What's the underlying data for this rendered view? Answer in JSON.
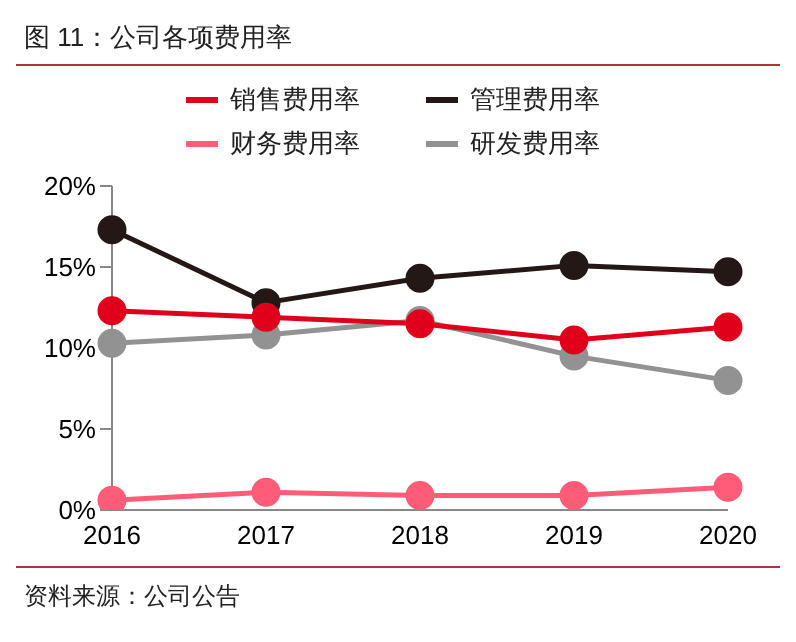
{
  "chart_data": {
    "type": "line",
    "title": "图 11：公司各项费用率",
    "annotations": [
      "资料来源：公司公告"
    ],
    "categories": [
      "2016",
      "2017",
      "2018",
      "2019",
      "2020"
    ],
    "series": [
      {
        "name": "销售费用率",
        "color": "#e0001b",
        "values": [
          12.3,
          11.9,
          11.5,
          10.5,
          11.3
        ]
      },
      {
        "name": "管理费用率",
        "color": "#231815",
        "values": [
          17.3,
          12.8,
          14.3,
          15.1,
          14.7
        ]
      },
      {
        "name": "财务费用率",
        "color": "#ff5c77",
        "values": [
          0.6,
          1.1,
          0.9,
          0.9,
          1.4
        ]
      },
      {
        "name": "研发费用率",
        "color": "#929292",
        "values": [
          10.3,
          10.8,
          11.7,
          9.5,
          8.0
        ]
      }
    ],
    "ylim": [
      0,
      20
    ],
    "yticks": [
      {
        "value": 0,
        "label": "0%"
      },
      {
        "value": 5,
        "label": "5%"
      },
      {
        "value": 10,
        "label": "10%"
      },
      {
        "value": 15,
        "label": "15%"
      },
      {
        "value": 20,
        "label": "20%"
      }
    ],
    "grid": false,
    "legend": "top",
    "marker": "circle",
    "line_style": "solid"
  }
}
